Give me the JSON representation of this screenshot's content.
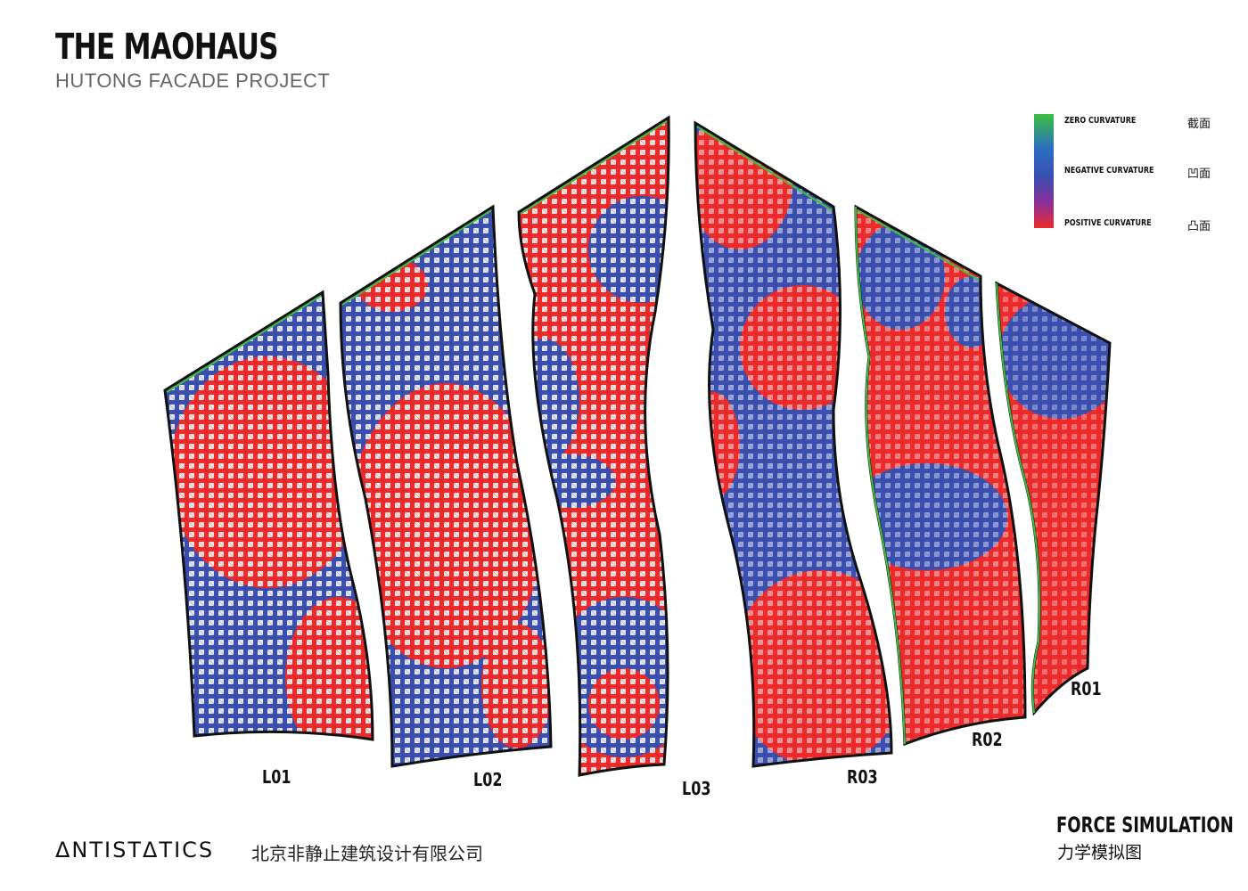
{
  "header": {
    "title": "THE MAOHAUS",
    "subtitle": "HUTONG FACADE PROJECT"
  },
  "legend": {
    "items": [
      {
        "label": "ZERO CURVATURE",
        "cn": "截面",
        "color": "#3fbf3f"
      },
      {
        "label": "NEGATIVE CURVATURE",
        "cn": "凹面",
        "color": "#3a4fb0"
      },
      {
        "label": "POSITIVE CURVATURE",
        "cn": "凸面",
        "color": "#ee2a2a"
      }
    ]
  },
  "panels": [
    {
      "label": "L01"
    },
    {
      "label": "L02"
    },
    {
      "label": "L03"
    },
    {
      "label": "R03"
    },
    {
      "label": "R02"
    },
    {
      "label": "R01"
    }
  ],
  "footer": {
    "brand": "ΔNTISTΔTICS",
    "brand_cn": "北京非静止建筑设计有限公司",
    "section_title": "FORCE SIMULATION",
    "section_title_cn": "力学模拟图"
  }
}
